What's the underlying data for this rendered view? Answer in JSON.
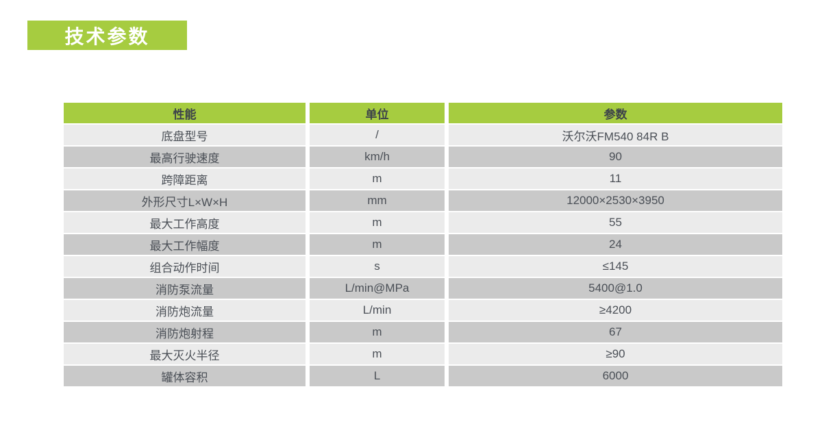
{
  "section_title": "技术参数",
  "colors": {
    "accent_green": "#a6cc40",
    "row_light": "#ebebeb",
    "row_dark": "#c9c9c9",
    "header_text": "#3c424a",
    "body_text": "#4a4f56",
    "banner_text": "#ffffff"
  },
  "table": {
    "headers": [
      "性能",
      "单位",
      "参数"
    ],
    "rows": [
      {
        "name": "底盘型号",
        "unit": "/",
        "value": "沃尔沃FM540 84R B"
      },
      {
        "name": "最高行驶速度",
        "unit": "km/h",
        "value": "90"
      },
      {
        "name": "跨障距离",
        "unit": "m",
        "value": "11"
      },
      {
        "name": "外形尺寸L×W×H",
        "unit": "mm",
        "value": "12000×2530×3950"
      },
      {
        "name": "最大工作高度",
        "unit": "m",
        "value": "55"
      },
      {
        "name": "最大工作幅度",
        "unit": "m",
        "value": "24"
      },
      {
        "name": "组合动作时间",
        "unit": "s",
        "value": "≤145"
      },
      {
        "name": "消防泵流量",
        "unit": "L/min@MPa",
        "value": "5400@1.0"
      },
      {
        "name": "消防炮流量",
        "unit": "L/min",
        "value": "≥4200"
      },
      {
        "name": "消防炮射程",
        "unit": "m",
        "value": "67"
      },
      {
        "name": "最大灭火半径",
        "unit": "m",
        "value": "≥90"
      },
      {
        "name": "罐体容积",
        "unit": "L",
        "value": "6000"
      }
    ]
  }
}
